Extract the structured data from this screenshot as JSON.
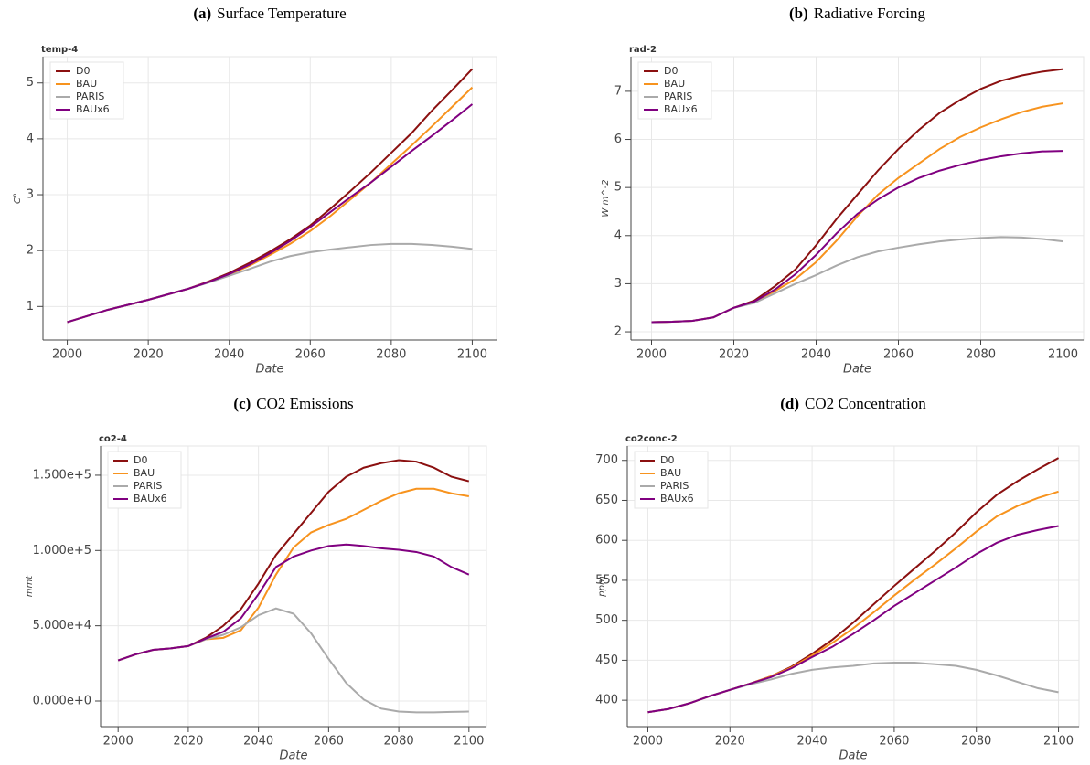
{
  "chart_data": [
    {
      "type": "line",
      "label": "(a)",
      "caption": "Surface Temperature",
      "title": "temp-4",
      "xlabel": "Date",
      "ylabel": "C°",
      "x": [
        2000,
        2005,
        2010,
        2015,
        2020,
        2025,
        2030,
        2035,
        2040,
        2045,
        2050,
        2055,
        2060,
        2065,
        2070,
        2075,
        2080,
        2085,
        2090,
        2095,
        2100
      ],
      "series": [
        {
          "name": "D0",
          "color": "#8b1010",
          "values": [
            0.72,
            0.83,
            0.94,
            1.03,
            1.12,
            1.22,
            1.32,
            1.45,
            1.6,
            1.78,
            1.98,
            2.2,
            2.45,
            2.75,
            3.07,
            3.4,
            3.75,
            4.1,
            4.5,
            4.87,
            5.25
          ]
        },
        {
          "name": "BAU",
          "color": "#f7931e",
          "values": [
            0.72,
            0.83,
            0.94,
            1.03,
            1.12,
            1.22,
            1.32,
            1.44,
            1.57,
            1.73,
            1.92,
            2.12,
            2.35,
            2.62,
            2.92,
            3.22,
            3.55,
            3.88,
            4.22,
            4.57,
            4.92
          ]
        },
        {
          "name": "PARIS",
          "color": "#aaaaaa",
          "values": [
            0.72,
            0.83,
            0.94,
            1.03,
            1.12,
            1.22,
            1.32,
            1.43,
            1.55,
            1.67,
            1.8,
            1.9,
            1.97,
            2.02,
            2.06,
            2.1,
            2.12,
            2.12,
            2.1,
            2.07,
            2.03
          ]
        },
        {
          "name": "BAUx6",
          "color": "#800080",
          "values": [
            0.72,
            0.83,
            0.94,
            1.03,
            1.12,
            1.22,
            1.32,
            1.44,
            1.58,
            1.75,
            1.95,
            2.17,
            2.42,
            2.69,
            2.96,
            3.22,
            3.5,
            3.78,
            4.05,
            4.33,
            4.62
          ]
        }
      ],
      "xlim": [
        1994,
        2106
      ],
      "xticks": [
        2000,
        2020,
        2040,
        2060,
        2080,
        2100
      ],
      "ylim": [
        0.4,
        5.47
      ],
      "yticks": [
        1,
        2,
        3,
        4,
        5
      ],
      "grid": true,
      "legend": "top-left"
    },
    {
      "type": "line",
      "label": "(b)",
      "caption": "Radiative Forcing",
      "title": "rad-2",
      "xlabel": "Date",
      "ylabel": "W m^-2",
      "x": [
        2000,
        2005,
        2010,
        2015,
        2020,
        2025,
        2030,
        2035,
        2040,
        2045,
        2050,
        2055,
        2060,
        2065,
        2070,
        2075,
        2080,
        2085,
        2090,
        2095,
        2100
      ],
      "series": [
        {
          "name": "D0",
          "color": "#8b1010",
          "values": [
            2.2,
            2.21,
            2.23,
            2.3,
            2.5,
            2.65,
            2.95,
            3.3,
            3.8,
            4.35,
            4.85,
            5.35,
            5.8,
            6.2,
            6.55,
            6.82,
            7.05,
            7.22,
            7.33,
            7.41,
            7.46
          ]
        },
        {
          "name": "BAU",
          "color": "#f7931e",
          "values": [
            2.2,
            2.21,
            2.23,
            2.3,
            2.5,
            2.62,
            2.85,
            3.1,
            3.45,
            3.9,
            4.4,
            4.85,
            5.2,
            5.5,
            5.8,
            6.05,
            6.25,
            6.42,
            6.57,
            6.68,
            6.75
          ]
        },
        {
          "name": "PARIS",
          "color": "#aaaaaa",
          "values": [
            2.2,
            2.21,
            2.23,
            2.3,
            2.5,
            2.6,
            2.8,
            3.0,
            3.18,
            3.38,
            3.55,
            3.67,
            3.75,
            3.82,
            3.88,
            3.92,
            3.95,
            3.97,
            3.96,
            3.93,
            3.88
          ]
        },
        {
          "name": "BAUx6",
          "color": "#800080",
          "values": [
            2.2,
            2.21,
            2.23,
            2.3,
            2.5,
            2.63,
            2.88,
            3.2,
            3.6,
            4.05,
            4.45,
            4.75,
            5.0,
            5.2,
            5.35,
            5.47,
            5.57,
            5.65,
            5.71,
            5.75,
            5.76
          ]
        }
      ],
      "xlim": [
        1995,
        2105
      ],
      "xticks": [
        2000,
        2020,
        2040,
        2060,
        2080,
        2100
      ],
      "ylim": [
        1.83,
        7.72
      ],
      "yticks": [
        2,
        3,
        4,
        5,
        6,
        7
      ],
      "grid": true,
      "legend": "top-left"
    },
    {
      "type": "line",
      "label": "(c)",
      "caption": "CO2 Emissions",
      "title": "co2-4",
      "xlabel": "Date",
      "ylabel": "mmt",
      "x": [
        2000,
        2005,
        2010,
        2015,
        2020,
        2025,
        2030,
        2035,
        2040,
        2045,
        2050,
        2055,
        2060,
        2065,
        2070,
        2075,
        2080,
        2085,
        2090,
        2095,
        2100
      ],
      "series": [
        {
          "name": "D0",
          "color": "#8b1010",
          "values": [
            27000,
            31000,
            34000,
            35000,
            36500,
            42000,
            50000,
            61000,
            78000,
            97000,
            111000,
            125000,
            139000,
            149000,
            155000,
            158000,
            160000,
            159000,
            155000,
            149000,
            146000
          ]
        },
        {
          "name": "BAU",
          "color": "#f7931e",
          "values": [
            27000,
            31000,
            34000,
            35000,
            36500,
            41000,
            42000,
            47000,
            62000,
            84000,
            102000,
            112000,
            117000,
            121000,
            127000,
            133000,
            138000,
            141000,
            141000,
            138000,
            136000
          ]
        },
        {
          "name": "PARIS",
          "color": "#aaaaaa",
          "values": [
            27000,
            31000,
            34000,
            35000,
            36500,
            41000,
            44000,
            49000,
            57000,
            61500,
            58000,
            45000,
            28000,
            12000,
            1000,
            -5000,
            -7000,
            -7500,
            -7500,
            -7200,
            -7000
          ]
        },
        {
          "name": "BAUx6",
          "color": "#800080",
          "values": [
            27000,
            31000,
            34000,
            35000,
            36500,
            41500,
            46000,
            55000,
            71000,
            89000,
            96000,
            100000,
            103000,
            104000,
            103000,
            101500,
            100500,
            99000,
            96000,
            89000,
            84000
          ]
        }
      ],
      "xlim": [
        1995,
        2105
      ],
      "xticks": [
        2000,
        2020,
        2040,
        2060,
        2080,
        2100
      ],
      "ylim": [
        -17000,
        169400
      ],
      "yticks": [
        {
          "value": 0,
          "label": "0.000e+0"
        },
        {
          "value": 50000,
          "label": "5.000e+4"
        },
        {
          "value": 100000,
          "label": "1.000e+5"
        },
        {
          "value": 150000,
          "label": "1.500e+5"
        }
      ],
      "grid": true,
      "legend": "top-left"
    },
    {
      "type": "line",
      "label": "(d)",
      "caption": "CO2 Concentration",
      "title": "co2conc-2",
      "xlabel": "Date",
      "ylabel": "ppm",
      "x": [
        2000,
        2005,
        2010,
        2015,
        2020,
        2025,
        2030,
        2035,
        2040,
        2045,
        2050,
        2055,
        2060,
        2065,
        2070,
        2075,
        2080,
        2085,
        2090,
        2095,
        2100
      ],
      "series": [
        {
          "name": "D0",
          "color": "#8b1010",
          "values": [
            385,
            389,
            396,
            405,
            413,
            421,
            430,
            442,
            458,
            476,
            497,
            520,
            543,
            565,
            587,
            610,
            635,
            657,
            674,
            689,
            703
          ]
        },
        {
          "name": "BAU",
          "color": "#f7931e",
          "values": [
            385,
            389,
            396,
            405,
            413,
            421,
            430,
            441,
            456,
            472,
            490,
            510,
            531,
            551,
            570,
            590,
            611,
            630,
            643,
            653,
            661
          ]
        },
        {
          "name": "PARIS",
          "color": "#aaaaaa",
          "values": [
            385,
            389,
            396,
            405,
            413,
            420,
            426,
            433,
            438,
            441,
            443,
            446,
            447,
            447,
            445,
            443,
            438,
            431,
            423,
            415,
            410
          ]
        },
        {
          "name": "BAUx6",
          "color": "#800080",
          "values": [
            385,
            389,
            396,
            405,
            413,
            421,
            429,
            440,
            454,
            467,
            483,
            500,
            518,
            534,
            550,
            566,
            583,
            597,
            607,
            613,
            618
          ]
        }
      ],
      "xlim": [
        1995,
        2105
      ],
      "xticks": [
        2000,
        2020,
        2040,
        2060,
        2080,
        2100
      ],
      "ylim": [
        367,
        718
      ],
      "yticks": [
        400,
        450,
        500,
        550,
        600,
        650,
        700
      ],
      "grid": true,
      "legend": "top-left"
    }
  ]
}
